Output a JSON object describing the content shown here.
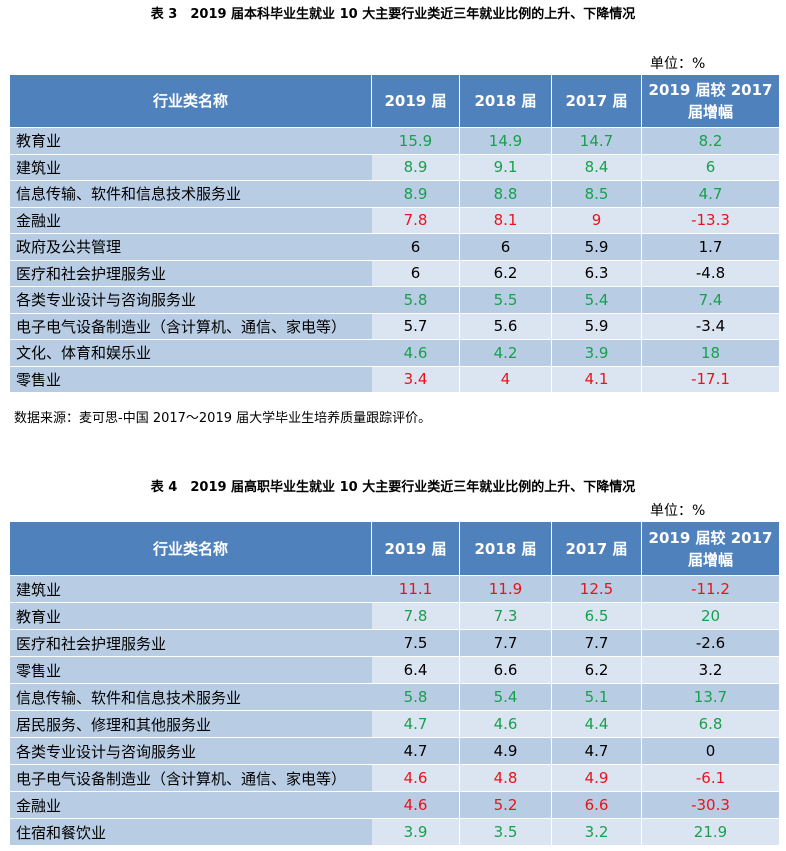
{
  "tables": [
    {
      "title": "表 3　2019 届本科毕业生就业 10 大主要行业类近三年就业比例的上升、下降情况",
      "unit": "单位：%",
      "columns": [
        "行业类名称",
        "2019 届",
        "2018 届",
        "2017 届",
        "2019 届较 2017 届增幅"
      ],
      "rows": [
        {
          "name": "教育业",
          "values": [
            15.9,
            14.9,
            14.7,
            8.2
          ],
          "color": "#18a04c"
        },
        {
          "name": "建筑业",
          "values": [
            8.9,
            9.1,
            8.4,
            6
          ],
          "color": "#18a04c"
        },
        {
          "name": "信息传输、软件和信息技术服务业",
          "values": [
            8.9,
            8.8,
            8.5,
            4.7
          ],
          "color": "#18a04c"
        },
        {
          "name": "金融业",
          "values": [
            7.8,
            8.1,
            9,
            -13.3
          ],
          "color": "#e8141b"
        },
        {
          "name": "政府及公共管理",
          "values": [
            6,
            6,
            5.9,
            1.7
          ],
          "color": "#000000"
        },
        {
          "name": "医疗和社会护理服务业",
          "values": [
            6,
            6.2,
            6.3,
            -4.8
          ],
          "color": "#000000"
        },
        {
          "name": "各类专业设计与咨询服务业",
          "values": [
            5.8,
            5.5,
            5.4,
            7.4
          ],
          "color": "#18a04c"
        },
        {
          "name": "电子电气设备制造业（含计算机、通信、家电等）",
          "values": [
            5.7,
            5.6,
            5.9,
            -3.4
          ],
          "color": "#000000"
        },
        {
          "name": "文化、体育和娱乐业",
          "values": [
            4.6,
            4.2,
            3.9,
            18
          ],
          "color": "#18a04c"
        },
        {
          "name": "零售业",
          "values": [
            3.4,
            4,
            4.1,
            -17.1
          ],
          "color": "#e8141b"
        }
      ],
      "source": "数据来源：麦可思-中国 2017～2019 届大学毕业生培养质量跟踪评价。"
    },
    {
      "title": "表 4　2019 届高职毕业生就业 10 大主要行业类近三年就业比例的上升、下降情况",
      "unit": "单位：%",
      "columns": [
        "行业类名称",
        "2019 届",
        "2018 届",
        "2017 届",
        "2019 届较 2017 届增幅"
      ],
      "rows": [
        {
          "name": "建筑业",
          "values": [
            11.1,
            11.9,
            12.5,
            -11.2
          ],
          "color": "#e8141b"
        },
        {
          "name": "教育业",
          "values": [
            7.8,
            7.3,
            6.5,
            20
          ],
          "color": "#18a04c"
        },
        {
          "name": "医疗和社会护理服务业",
          "values": [
            7.5,
            7.7,
            7.7,
            -2.6
          ],
          "color": "#000000"
        },
        {
          "name": "零售业",
          "values": [
            6.4,
            6.6,
            6.2,
            3.2
          ],
          "color": "#000000"
        },
        {
          "name": "信息传输、软件和信息技术服务业",
          "values": [
            5.8,
            5.4,
            5.1,
            13.7
          ],
          "color": "#18a04c"
        },
        {
          "name": "居民服务、修理和其他服务业",
          "values": [
            4.7,
            4.6,
            4.4,
            6.8
          ],
          "color": "#18a04c"
        },
        {
          "name": "各类专业设计与咨询服务业",
          "values": [
            4.7,
            4.9,
            4.7,
            0
          ],
          "color": "#000000"
        },
        {
          "name": "电子电气设备制造业（含计算机、通信、家电等）",
          "values": [
            4.6,
            4.8,
            4.9,
            -6.1
          ],
          "color": "#e8141b"
        },
        {
          "name": "金融业",
          "values": [
            4.6,
            5.2,
            6.6,
            -30.3
          ],
          "color": "#e8141b"
        },
        {
          "name": "住宿和餐饮业",
          "values": [
            3.9,
            3.5,
            3.2,
            21.9
          ],
          "color": "#18a04c"
        }
      ]
    }
  ]
}
